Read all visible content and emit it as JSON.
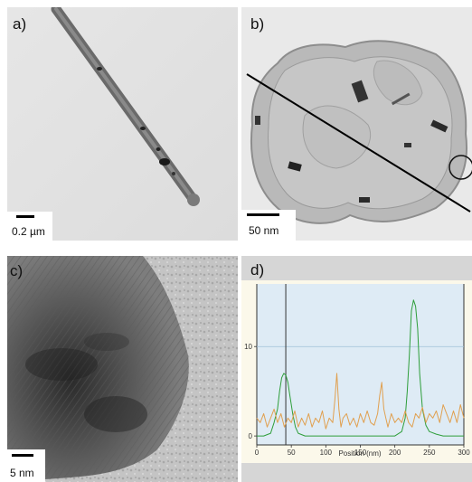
{
  "panels": {
    "a": {
      "label": "a)",
      "scale_bar": "0.2 µm"
    },
    "b": {
      "label": "b)",
      "scale_bar": "50 nm"
    },
    "c": {
      "label": "c)",
      "scale_bar": "5 nm"
    },
    "d": {
      "label": "d)"
    }
  },
  "chart_data": {
    "type": "line",
    "xlabel": "Position (nm)",
    "ylabel": "",
    "xlim": [
      0,
      300
    ],
    "ylim": [
      -1,
      17
    ],
    "xticks": [
      0,
      50,
      100,
      150,
      200,
      250,
      300
    ],
    "yticks": [
      0,
      10
    ],
    "grid": "horizontal line at 10",
    "marker_x": 42,
    "colors": {
      "green": "#2e9e3a",
      "orange": "#e0a050",
      "background": "#deebf5"
    },
    "series": [
      {
        "color": "green",
        "x": [
          0,
          10,
          20,
          25,
          30,
          33,
          36,
          39,
          42,
          45,
          48,
          52,
          56,
          60,
          70,
          80,
          100,
          150,
          200,
          210,
          215,
          218,
          221,
          224,
          227,
          230,
          233,
          236,
          240,
          245,
          250,
          260,
          270,
          280,
          290,
          300
        ],
        "values": [
          0,
          0,
          0.3,
          1.5,
          3,
          5,
          6.5,
          7,
          6.8,
          6,
          4.5,
          2.5,
          1,
          0.3,
          0,
          0,
          0,
          0,
          0,
          0.5,
          2,
          5,
          9,
          14,
          15.2,
          14.5,
          12,
          7,
          3,
          1.2,
          0.5,
          0.2,
          0,
          0,
          0,
          0
        ]
      },
      {
        "color": "orange",
        "x": [
          0,
          5,
          10,
          15,
          20,
          25,
          30,
          35,
          40,
          45,
          50,
          55,
          60,
          65,
          70,
          75,
          80,
          85,
          90,
          95,
          100,
          105,
          110,
          113,
          116,
          119,
          122,
          125,
          130,
          135,
          140,
          145,
          150,
          155,
          160,
          165,
          170,
          175,
          178,
          181,
          184,
          187,
          190,
          195,
          200,
          205,
          210,
          215,
          220,
          225,
          230,
          235,
          240,
          245,
          250,
          255,
          260,
          265,
          270,
          275,
          280,
          285,
          290,
          295,
          300
        ],
        "values": [
          2,
          1.5,
          2.5,
          1,
          2,
          3,
          1.5,
          2.5,
          1,
          2,
          1.5,
          2.8,
          1,
          2,
          1.2,
          2.5,
          1,
          2,
          1.5,
          2.8,
          0.8,
          2,
          1.5,
          4,
          7,
          3,
          1,
          2,
          2.5,
          1.2,
          2,
          1,
          2.5,
          1.5,
          2.8,
          1.5,
          1.2,
          2.5,
          4.5,
          6,
          3,
          2,
          1,
          2.5,
          1.5,
          2,
          1.5,
          2.8,
          1.5,
          1,
          2.5,
          2,
          3.2,
          1.5,
          2.5,
          2,
          2.8,
          1.5,
          3.5,
          2.5,
          1.5,
          2.8,
          1.5,
          3.5,
          2
        ]
      }
    ]
  }
}
